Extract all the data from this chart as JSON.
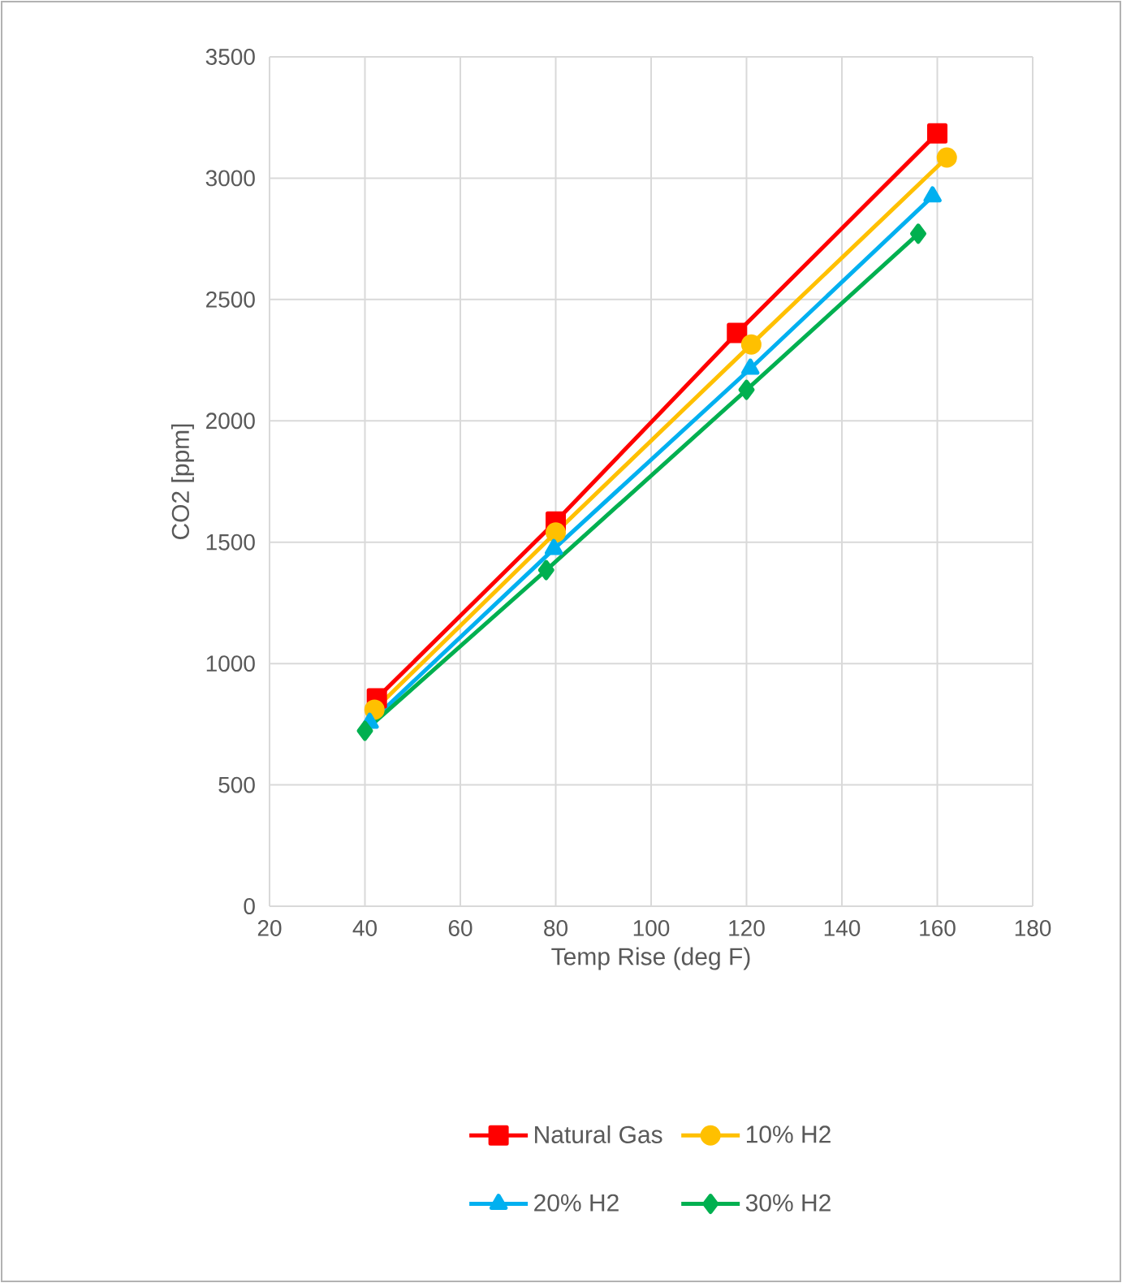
{
  "chart_data": {
    "type": "line",
    "xlabel": "Temp Rise (deg F)",
    "ylabel": "CO2 [ppm]",
    "xlim": [
      20,
      180
    ],
    "xticks": [
      20,
      40,
      60,
      80,
      100,
      120,
      140,
      160,
      180
    ],
    "ylim": [
      0,
      3500
    ],
    "yticks": [
      0,
      500,
      1000,
      1500,
      2000,
      2500,
      3000,
      3500
    ],
    "grid": true,
    "legend": "bottom",
    "series": [
      {
        "name": "Natural Gas",
        "color": "#ff0000",
        "marker": "square",
        "x": [
          42.5,
          80,
          118,
          160
        ],
        "values": [
          857,
          1585,
          2362,
          3185
        ]
      },
      {
        "name": "10% H2",
        "color": "#ffc000",
        "marker": "circle",
        "x": [
          42,
          80,
          121,
          162
        ],
        "values": [
          810,
          1540,
          2315,
          3085
        ]
      },
      {
        "name": "20% H2",
        "color": "#00b0f0",
        "marker": "triangle",
        "x": [
          41,
          79.6,
          120.8,
          159
        ],
        "values": [
          756,
          1472,
          2215,
          2925
        ]
      },
      {
        "name": "30% H2",
        "color": "#00b050",
        "marker": "diamond",
        "x": [
          40,
          78,
          120,
          156
        ],
        "values": [
          723,
          1385,
          2128,
          2771
        ]
      }
    ]
  }
}
